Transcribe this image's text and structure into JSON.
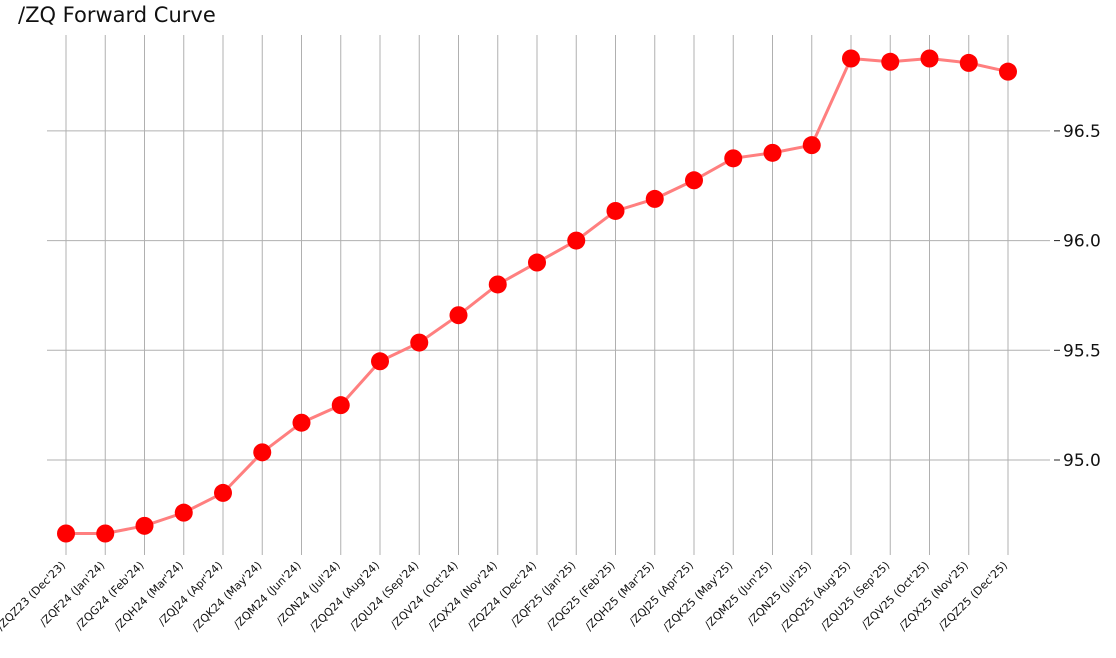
{
  "chart_data": {
    "type": "line",
    "title": "/ZQ Forward Curve",
    "xlabel": "",
    "ylabel": "",
    "categories": [
      "/ZQZ23 (Dec'23)",
      "/ZQF24 (Jan'24)",
      "/ZQG24 (Feb'24)",
      "/ZQH24 (Mar'24)",
      "/ZQJ24 (Apr'24)",
      "/ZQK24 (May'24)",
      "/ZQM24 (Jun'24)",
      "/ZQN24 (Jul'24)",
      "/ZQQ24 (Aug'24)",
      "/ZQU24 (Sep'24)",
      "/ZQV24 (Oct'24)",
      "/ZQX24 (Nov'24)",
      "/ZQZ24 (Dec'24)",
      "/ZQF25 (Jan'25)",
      "/ZQG25 (Feb'25)",
      "/ZQH25 (Mar'25)",
      "/ZQJ25 (Apr'25)",
      "/ZQK25 (May'25)",
      "/ZQM25 (Jun'25)",
      "/ZQN25 (Jul'25)",
      "/ZQQ25 (Aug'25)",
      "/ZQU25 (Sep'25)",
      "/ZQV25 (Oct'25)",
      "/ZQX25 (Nov'25)",
      "/ZQZ25 (Dec'25)"
    ],
    "values": [
      94.665,
      94.665,
      94.7,
      94.76,
      94.85,
      95.035,
      95.17,
      95.25,
      95.45,
      95.535,
      95.66,
      95.8,
      95.9,
      96.0,
      96.135,
      96.19,
      96.275,
      96.375,
      96.4,
      96.435,
      96.83,
      96.815,
      96.83,
      96.81,
      96.77
    ],
    "ylim": [
      94.57,
      96.92
    ],
    "yticks": [
      95.0,
      95.5,
      96.0,
      96.5
    ],
    "ytick_labels": [
      "95.0",
      "95.5",
      "96.0",
      "96.5"
    ],
    "y_axis_side": "right",
    "grid": true,
    "line_color": "#ff7f7f",
    "marker_color": "#ff0000"
  }
}
